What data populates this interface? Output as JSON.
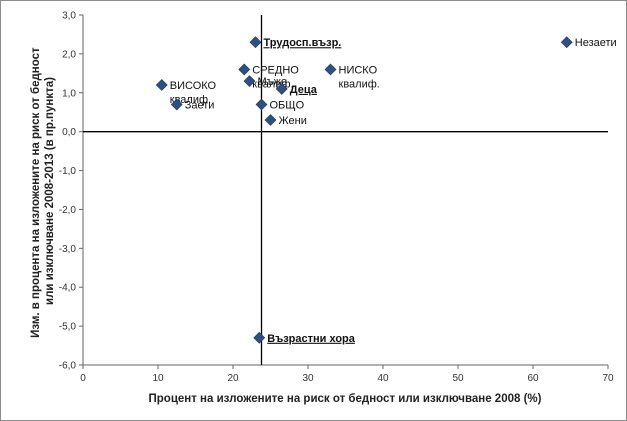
{
  "chart_data": {
    "type": "scatter",
    "title": "",
    "xlabel": "Процент на изложените на риск от бедност или изключване 2008 (%)",
    "ylabel_lines": [
      "Изм. в процента на изложените на риск от бедност",
      "или изключване 2008-2013 (в пр.пункта)"
    ],
    "xlim": [
      0,
      70
    ],
    "ylim": [
      -6,
      3
    ],
    "x_ticks": [
      0,
      10,
      20,
      30,
      40,
      50,
      60,
      70
    ],
    "y_ticks": [
      -6,
      -5,
      -4,
      -3,
      -2,
      -1,
      0,
      1,
      2,
      3
    ],
    "y_tick_labels": [
      "-6,0",
      "-5,0",
      "-4,0",
      "-3,0",
      "-2,0",
      "-1,0",
      "0,0",
      "1,0",
      "2,0",
      "3,0"
    ],
    "reference_line_x": 23.8,
    "grid": false,
    "marker_color": "#2f4f7f",
    "points": [
      {
        "x": 23.0,
        "y": 2.3,
        "lines": [
          "Трудосп.възр."
        ],
        "style": "bold-underline"
      },
      {
        "x": 21.5,
        "y": 1.6,
        "lines": [
          "СРЕДНО",
          "квалиф."
        ],
        "style": "normal"
      },
      {
        "x": 10.5,
        "y": 1.2,
        "lines": [
          "ВИСОКО",
          "квалиф."
        ],
        "style": "normal"
      },
      {
        "x": 22.2,
        "y": 1.3,
        "lines": [
          "Мъже"
        ],
        "style": "normal"
      },
      {
        "x": 33.0,
        "y": 1.6,
        "lines": [
          "НИСКО",
          "квалиф."
        ],
        "style": "normal"
      },
      {
        "x": 26.5,
        "y": 1.1,
        "lines": [
          "Деца"
        ],
        "style": "bold-underline"
      },
      {
        "x": 12.5,
        "y": 0.7,
        "lines": [
          "Заети"
        ],
        "style": "normal"
      },
      {
        "x": 23.8,
        "y": 0.7,
        "lines": [
          "ОБЩО"
        ],
        "style": "normal"
      },
      {
        "x": 25.0,
        "y": 0.3,
        "lines": [
          "Жени"
        ],
        "style": "normal"
      },
      {
        "x": 64.5,
        "y": 2.3,
        "lines": [
          "Незаети"
        ],
        "style": "normal"
      },
      {
        "x": 23.5,
        "y": -5.3,
        "lines": [
          "Възрастни хора"
        ],
        "style": "bold-underline"
      }
    ]
  }
}
